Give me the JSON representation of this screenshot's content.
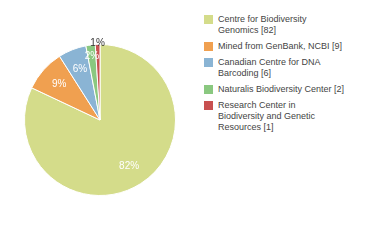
{
  "chart_data": {
    "type": "pie",
    "categories": [
      "Centre for Biodiversity\nGenomics [82]",
      "Mined from GenBank, NCBI [9]",
      "Canadian Centre for DNA\nBarcoding [6]",
      "Naturalis Biodiversity Center [2]",
      "Research Center in\nBiodiversity and Genetic\nResources [1]"
    ],
    "values": [
      82,
      9,
      6,
      2,
      1
    ],
    "value_labels": [
      "82%",
      "9%",
      "6%",
      "2%",
      "1%"
    ],
    "colors": [
      "#d4dc8a",
      "#f0a050",
      "#8ab4d4",
      "#8ac880",
      "#c85050"
    ],
    "legend": "right",
    "data_labels": true
  }
}
